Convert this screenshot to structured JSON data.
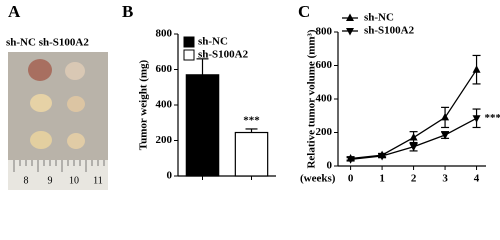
{
  "photo": {
    "panel_label": "A",
    "caption": "sh-NC sh-S100A2",
    "ruler_labels": [
      "8",
      "9",
      "10",
      "11"
    ]
  },
  "chart_data": [
    {
      "type": "bar",
      "panel_label": "B",
      "ylabel": "Tumor weight (mg)",
      "categories": [
        null,
        null
      ],
      "series": [
        {
          "name": "sh-NC",
          "color": "#000000",
          "values": [
            570,
            null
          ],
          "errors": [
            90,
            null
          ]
        },
        {
          "name": "sh-S100A2",
          "color": "#ffffff",
          "values": [
            null,
            245
          ],
          "errors": [
            null,
            20
          ]
        }
      ],
      "annotation": "***",
      "ylim": [
        0,
        800
      ],
      "yticks": [
        0,
        200,
        400,
        600,
        800
      ]
    },
    {
      "type": "line",
      "panel_label": "C",
      "ylabel": "Relative tumor volume (mm³)",
      "xlabel": "(weeks)",
      "x": [
        0,
        1,
        2,
        3,
        4
      ],
      "series": [
        {
          "name": "sh-NC",
          "color": "#000000",
          "marker": "triangle-up",
          "values": [
            45,
            65,
            170,
            290,
            575
          ],
          "errors": [
            10,
            10,
            35,
            60,
            85
          ]
        },
        {
          "name": "sh-S100A2",
          "color": "#000000",
          "marker": "triangle-down",
          "values": [
            40,
            60,
            115,
            185,
            285
          ],
          "errors": [
            10,
            10,
            25,
            20,
            55
          ]
        }
      ],
      "annotation": "***",
      "xlim": [
        -0.4,
        4.3
      ],
      "xticks": [
        0,
        1,
        2,
        3,
        4
      ],
      "ylim": [
        0,
        800
      ],
      "yticks": [
        0,
        200,
        400,
        600,
        800
      ]
    }
  ]
}
